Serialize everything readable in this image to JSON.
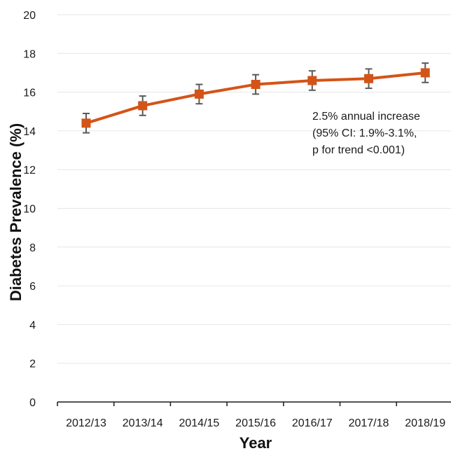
{
  "chart_data": {
    "type": "line",
    "title": "",
    "xlabel": "Year",
    "ylabel": "Diabetes Prevalence (%)",
    "ylim": [
      0,
      20
    ],
    "yticks": [
      0,
      2,
      4,
      6,
      8,
      10,
      12,
      14,
      16,
      18,
      20
    ],
    "categories": [
      "2012/13",
      "2013/14",
      "2014/15",
      "2015/16",
      "2016/17",
      "2017/18",
      "2018/19"
    ],
    "series": [
      {
        "values": [
          14.4,
          15.3,
          15.9,
          16.4,
          16.6,
          16.7,
          17.0
        ],
        "ci_lower": [
          13.9,
          14.8,
          15.4,
          15.9,
          16.1,
          16.2,
          16.5
        ],
        "ci_upper": [
          14.9,
          15.8,
          16.4,
          16.9,
          17.1,
          17.2,
          17.5
        ],
        "color": "#d35418",
        "marker": "square"
      }
    ],
    "error_bar_color": "#5a5a5a",
    "grid": true,
    "gridline_color": "#e6e6e6",
    "annotation": {
      "lines": [
        "2.5% annual increase",
        "(95% CI: 1.9%-3.1%,",
        "p for trend <0.001)"
      ]
    },
    "legend": "none"
  }
}
